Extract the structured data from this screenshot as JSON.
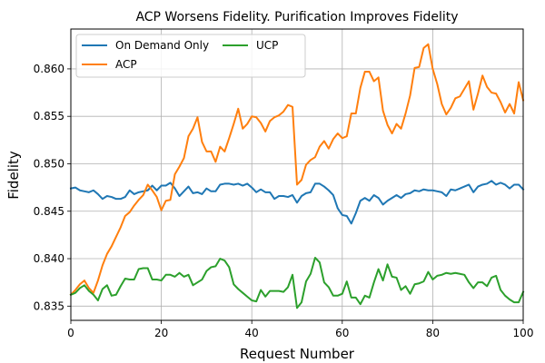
{
  "chart_data": {
    "type": "line",
    "title": "ACP Worsens Fidelity. Purification Improves Fidelity",
    "xlabel": "Request Number",
    "ylabel": "Fidelity",
    "xlim": [
      0,
      100
    ],
    "ylim": [
      0.8335,
      0.8642
    ],
    "xticks": [
      0,
      20,
      40,
      60,
      80,
      100
    ],
    "yticks": [
      0.835,
      0.84,
      0.845,
      0.85,
      0.855,
      0.86
    ],
    "ytick_labels": [
      "0.835",
      "0.840",
      "0.845",
      "0.850",
      "0.855",
      "0.860"
    ],
    "grid": true,
    "legend_position": "top-left",
    "x": [
      0,
      1,
      2,
      3,
      4,
      5,
      6,
      7,
      8,
      9,
      10,
      11,
      12,
      13,
      14,
      15,
      16,
      17,
      18,
      19,
      20,
      21,
      22,
      23,
      24,
      25,
      26,
      27,
      28,
      29,
      30,
      31,
      32,
      33,
      34,
      35,
      36,
      37,
      38,
      39,
      40,
      41,
      42,
      43,
      44,
      45,
      46,
      47,
      48,
      49,
      50,
      51,
      52,
      53,
      54,
      55,
      56,
      57,
      58,
      59,
      60,
      61,
      62,
      63,
      64,
      65,
      66,
      67,
      68,
      69,
      70,
      71,
      72,
      73,
      74,
      75,
      76,
      77,
      78,
      79,
      80,
      81,
      82,
      83,
      84,
      85,
      86,
      87,
      88,
      89,
      90,
      91,
      92,
      93,
      94,
      95,
      96,
      97,
      98,
      99,
      100
    ],
    "series": [
      {
        "name": "On Demand Only",
        "color": "#1f77b4",
        "values": [
          0.8474,
          0.8475,
          0.8472,
          0.8471,
          0.847,
          0.8472,
          0.8468,
          0.8463,
          0.8466,
          0.8465,
          0.8463,
          0.8463,
          0.8465,
          0.8472,
          0.8468,
          0.847,
          0.8471,
          0.8472,
          0.8477,
          0.8472,
          0.8477,
          0.8477,
          0.848,
          0.8474,
          0.8466,
          0.8471,
          0.8476,
          0.8469,
          0.847,
          0.8468,
          0.8474,
          0.8471,
          0.8471,
          0.8478,
          0.8479,
          0.8479,
          0.8478,
          0.8479,
          0.8477,
          0.8479,
          0.8475,
          0.847,
          0.8473,
          0.847,
          0.847,
          0.8463,
          0.8466,
          0.8466,
          0.8465,
          0.8467,
          0.8459,
          0.8466,
          0.8469,
          0.847,
          0.8479,
          0.8479,
          0.8476,
          0.8472,
          0.8467,
          0.8453,
          0.8446,
          0.8445,
          0.8437,
          0.8448,
          0.8461,
          0.8464,
          0.8461,
          0.8467,
          0.8464,
          0.8457,
          0.8461,
          0.8464,
          0.8467,
          0.8464,
          0.8468,
          0.8469,
          0.8472,
          0.8471,
          0.8473,
          0.8472,
          0.8472,
          0.8471,
          0.847,
          0.8466,
          0.8473,
          0.8472,
          0.8474,
          0.8476,
          0.8478,
          0.847,
          0.8476,
          0.8478,
          0.8479,
          0.8482,
          0.8478,
          0.848,
          0.8478,
          0.8474,
          0.8478,
          0.8478,
          0.8473
        ]
      },
      {
        "name": "ACP",
        "color": "#ff7f0e",
        "values": [
          0.8362,
          0.8367,
          0.8373,
          0.8377,
          0.8369,
          0.8364,
          0.8377,
          0.8393,
          0.8405,
          0.8413,
          0.8423,
          0.8433,
          0.8445,
          0.8449,
          0.8456,
          0.8462,
          0.8467,
          0.8478,
          0.8472,
          0.8465,
          0.8451,
          0.8461,
          0.8462,
          0.8489,
          0.8497,
          0.8506,
          0.8529,
          0.8537,
          0.8549,
          0.8523,
          0.8513,
          0.8513,
          0.8502,
          0.8518,
          0.8513,
          0.8527,
          0.8542,
          0.8558,
          0.8537,
          0.8542,
          0.855,
          0.8549,
          0.8543,
          0.8534,
          0.8545,
          0.8549,
          0.8551,
          0.8555,
          0.8562,
          0.856,
          0.8478,
          0.8483,
          0.8499,
          0.8504,
          0.8507,
          0.8518,
          0.8524,
          0.8516,
          0.8526,
          0.8532,
          0.8527,
          0.8529,
          0.8553,
          0.8553,
          0.858,
          0.8597,
          0.8597,
          0.8587,
          0.8591,
          0.8556,
          0.8541,
          0.8532,
          0.8542,
          0.8537,
          0.8553,
          0.8572,
          0.8601,
          0.8602,
          0.8622,
          0.8626,
          0.86,
          0.8584,
          0.8563,
          0.8552,
          0.8559,
          0.8569,
          0.8571,
          0.8579,
          0.8587,
          0.8557,
          0.8574,
          0.8593,
          0.8581,
          0.8575,
          0.8574,
          0.8565,
          0.8554,
          0.8563,
          0.8553,
          0.8586,
          0.8567
        ]
      },
      {
        "name": "UCP",
        "color": "#2ca02c",
        "values": [
          0.8362,
          0.8364,
          0.8369,
          0.8372,
          0.8366,
          0.8362,
          0.8356,
          0.8368,
          0.8372,
          0.8361,
          0.8362,
          0.8371,
          0.8379,
          0.8378,
          0.8378,
          0.8389,
          0.839,
          0.839,
          0.8378,
          0.8378,
          0.8377,
          0.8383,
          0.8383,
          0.8381,
          0.8385,
          0.8381,
          0.8383,
          0.8372,
          0.8375,
          0.8378,
          0.8387,
          0.8391,
          0.8392,
          0.84,
          0.8398,
          0.8391,
          0.8373,
          0.8368,
          0.8364,
          0.836,
          0.8356,
          0.8355,
          0.8367,
          0.836,
          0.8366,
          0.8366,
          0.8366,
          0.8365,
          0.837,
          0.8383,
          0.8348,
          0.8354,
          0.8376,
          0.8384,
          0.8401,
          0.8396,
          0.8375,
          0.837,
          0.8361,
          0.8361,
          0.8363,
          0.8376,
          0.8359,
          0.8359,
          0.8352,
          0.8361,
          0.8359,
          0.8375,
          0.8389,
          0.8377,
          0.8394,
          0.8381,
          0.838,
          0.8367,
          0.8371,
          0.8363,
          0.8373,
          0.8374,
          0.8376,
          0.8386,
          0.8378,
          0.8382,
          0.8383,
          0.8385,
          0.8384,
          0.8385,
          0.8384,
          0.8383,
          0.8375,
          0.8369,
          0.8375,
          0.8375,
          0.8371,
          0.838,
          0.8382,
          0.8367,
          0.8361,
          0.8357,
          0.8354,
          0.8354,
          0.8365
        ]
      }
    ]
  }
}
